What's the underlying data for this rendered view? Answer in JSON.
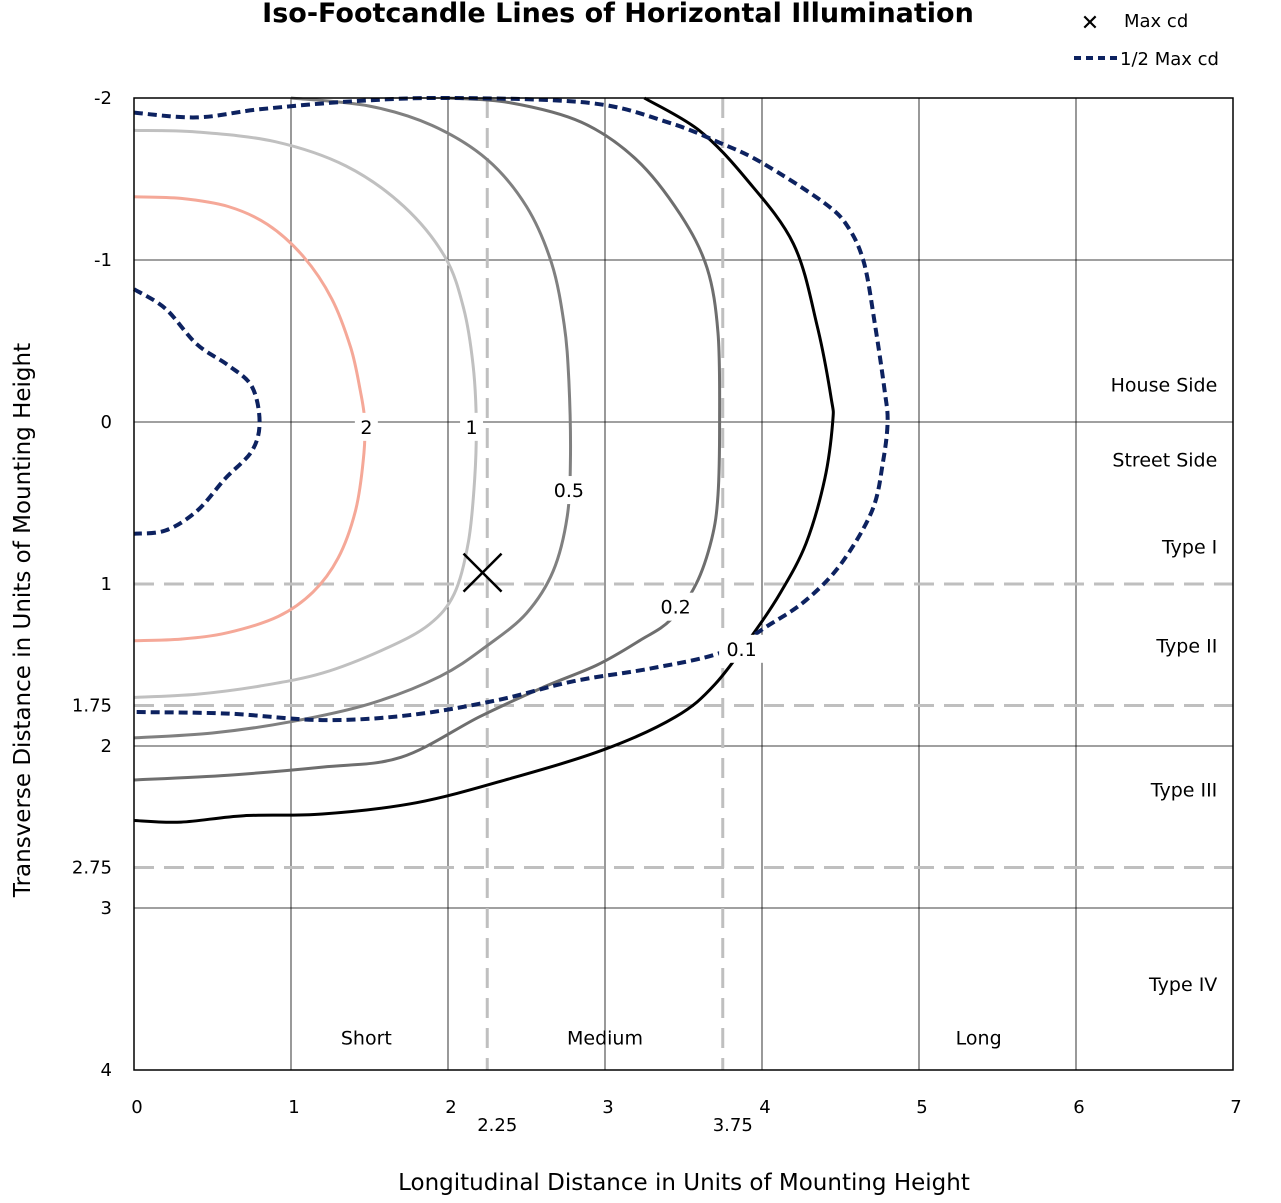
{
  "chart_data": {
    "type": "line",
    "title": "Iso-Footcandle Lines of Horizontal Illumination",
    "xlabel": "Longitudinal Distance in Units of Mounting Height",
    "ylabel": "Transverse Distance in Units of Mounting Height",
    "xlim": [
      0,
      7
    ],
    "ylim": [
      -2,
      4
    ],
    "y_inverted": true,
    "grid": true,
    "x_ticks": [
      "0",
      "1",
      "2",
      "3",
      "4",
      "5",
      "6",
      "7"
    ],
    "x_tick_values": [
      0,
      1,
      2,
      3,
      4,
      5,
      6,
      7
    ],
    "x_extra_ticks": [
      {
        "value": 2.25,
        "label": "2.25"
      },
      {
        "value": 3.75,
        "label": "3.75"
      }
    ],
    "y_ticks": [
      "-2",
      "-1",
      "0",
      "1",
      "1.75",
      "2",
      "2.75",
      "3",
      "4"
    ],
    "y_tick_values": [
      -2,
      -1,
      0,
      1,
      1.75,
      2,
      2.75,
      3,
      4
    ],
    "ref_lines": {
      "vertical": [
        2.25,
        3.75
      ],
      "horizontal": [
        1,
        1.75,
        2.75
      ]
    },
    "regions": [
      {
        "label": "House Side",
        "x": 6.9,
        "y": -0.23,
        "anchor": "end"
      },
      {
        "label": "Street Side",
        "x": 6.9,
        "y": 0.23,
        "anchor": "end"
      },
      {
        "label": "Type I",
        "x": 6.9,
        "y": 0.77,
        "anchor": "end"
      },
      {
        "label": "Type II",
        "x": 6.9,
        "y": 1.38,
        "anchor": "end"
      },
      {
        "label": "Type III",
        "x": 6.9,
        "y": 2.27,
        "anchor": "end"
      },
      {
        "label": "Type IV",
        "x": 6.9,
        "y": 3.47,
        "anchor": "end"
      },
      {
        "label": "Short",
        "x": 1.48,
        "y": 3.8,
        "anchor": "middle"
      },
      {
        "label": "Medium",
        "x": 3.0,
        "y": 3.8,
        "anchor": "middle"
      },
      {
        "label": "Long",
        "x": 5.38,
        "y": 3.8,
        "anchor": "middle"
      }
    ],
    "max_cd": {
      "x": 2.22,
      "y": 0.93
    },
    "legend": {
      "position": "top-right",
      "entries": [
        "Max cd",
        "1/2 Max cd"
      ]
    },
    "series": [
      {
        "name": "2",
        "color": "#f5a898",
        "width": 3,
        "dash": false,
        "label": {
          "text": "2",
          "x": 1.48,
          "y": 0.03
        },
        "points": [
          [
            0,
            -1.39
          ],
          [
            0.3,
            -1.38
          ],
          [
            0.6,
            -1.33
          ],
          [
            0.85,
            -1.22
          ],
          [
            1.08,
            -1.02
          ],
          [
            1.26,
            -0.76
          ],
          [
            1.38,
            -0.46
          ],
          [
            1.44,
            -0.2
          ],
          [
            1.47,
            0
          ],
          [
            1.46,
            0.24
          ],
          [
            1.41,
            0.55
          ],
          [
            1.3,
            0.84
          ],
          [
            1.14,
            1.05
          ],
          [
            0.92,
            1.2
          ],
          [
            0.6,
            1.3
          ],
          [
            0.3,
            1.34
          ],
          [
            0,
            1.35
          ]
        ]
      },
      {
        "name": "1",
        "color": "#c0c0c0",
        "width": 3,
        "dash": false,
        "label": {
          "text": "1",
          "x": 2.15,
          "y": 0.03
        },
        "points": [
          [
            0,
            -1.8
          ],
          [
            0.4,
            -1.79
          ],
          [
            0.9,
            -1.73
          ],
          [
            1.35,
            -1.58
          ],
          [
            1.72,
            -1.33
          ],
          [
            1.98,
            -1.02
          ],
          [
            2.1,
            -0.7
          ],
          [
            2.16,
            -0.35
          ],
          [
            2.18,
            0
          ],
          [
            2.17,
            0.35
          ],
          [
            2.13,
            0.74
          ],
          [
            2.04,
            1.06
          ],
          [
            1.88,
            1.25
          ],
          [
            1.6,
            1.4
          ],
          [
            1.2,
            1.55
          ],
          [
            0.8,
            1.63
          ],
          [
            0.4,
            1.68
          ],
          [
            0,
            1.7
          ]
        ]
      },
      {
        "name": "0.5",
        "color": "#808080",
        "width": 3,
        "dash": false,
        "label": {
          "text": "0.5",
          "x": 2.77,
          "y": 0.42
        },
        "points": [
          [
            1,
            -2.0
          ],
          [
            1.5,
            -1.95
          ],
          [
            1.9,
            -1.83
          ],
          [
            2.25,
            -1.62
          ],
          [
            2.5,
            -1.33
          ],
          [
            2.66,
            -0.98
          ],
          [
            2.74,
            -0.6
          ],
          [
            2.77,
            -0.25
          ],
          [
            2.78,
            0.2
          ],
          [
            2.76,
            0.58
          ],
          [
            2.67,
            0.92
          ],
          [
            2.5,
            1.18
          ],
          [
            2.25,
            1.38
          ],
          [
            1.95,
            1.57
          ],
          [
            1.5,
            1.74
          ],
          [
            1.0,
            1.85
          ],
          [
            0.5,
            1.92
          ],
          [
            0,
            1.95
          ]
        ]
      },
      {
        "name": "0.2",
        "color": "#6e6e6e",
        "width": 3,
        "dash": false,
        "label": {
          "text": "0.2",
          "x": 3.45,
          "y": 1.14
        },
        "points": [
          [
            2.0,
            -2.0
          ],
          [
            2.4,
            -1.97
          ],
          [
            2.85,
            -1.85
          ],
          [
            3.2,
            -1.62
          ],
          [
            3.48,
            -1.28
          ],
          [
            3.65,
            -0.95
          ],
          [
            3.72,
            -0.55
          ],
          [
            3.73,
            0
          ],
          [
            3.72,
            0.45
          ],
          [
            3.68,
            0.72
          ],
          [
            3.58,
            1.0
          ],
          [
            3.42,
            1.22
          ],
          [
            3.22,
            1.35
          ],
          [
            2.95,
            1.5
          ],
          [
            2.6,
            1.64
          ],
          [
            2.2,
            1.82
          ],
          [
            1.7,
            2.07
          ],
          [
            1.2,
            2.13
          ],
          [
            0.6,
            2.18
          ],
          [
            0,
            2.21
          ]
        ]
      },
      {
        "name": "0.1",
        "color": "#000000",
        "width": 3,
        "dash": false,
        "label": {
          "text": "0.1",
          "x": 3.87,
          "y": 1.4
        },
        "points": [
          [
            3.25,
            -2.0
          ],
          [
            3.6,
            -1.8
          ],
          [
            3.9,
            -1.5
          ],
          [
            4.2,
            -1.1
          ],
          [
            4.35,
            -0.6
          ],
          [
            4.44,
            -0.15
          ],
          [
            4.45,
            0
          ],
          [
            4.4,
            0.35
          ],
          [
            4.28,
            0.75
          ],
          [
            4.12,
            1.05
          ],
          [
            3.95,
            1.3
          ],
          [
            3.7,
            1.62
          ],
          [
            3.45,
            1.82
          ],
          [
            3.0,
            2.02
          ],
          [
            2.4,
            2.2
          ],
          [
            1.8,
            2.35
          ],
          [
            1.2,
            2.42
          ],
          [
            0.7,
            2.43
          ],
          [
            0.3,
            2.47
          ],
          [
            0,
            2.46
          ]
        ]
      },
      {
        "name": "1/2 Max cd",
        "color": "#0d2260",
        "width": 4,
        "dash": true,
        "points": [
          [
            0,
            -1.91
          ],
          [
            0.4,
            -1.88
          ],
          [
            0.8,
            -1.93
          ],
          [
            1.4,
            -1.98
          ],
          [
            2.0,
            -2.0
          ],
          [
            2.9,
            -1.97
          ],
          [
            3.4,
            -1.85
          ],
          [
            3.74,
            -1.72
          ],
          [
            4.0,
            -1.6
          ],
          [
            4.4,
            -1.35
          ],
          [
            4.55,
            -1.2
          ],
          [
            4.65,
            -0.98
          ],
          [
            4.72,
            -0.6
          ],
          [
            4.78,
            -0.2
          ],
          [
            4.8,
            0
          ],
          [
            4.77,
            0.25
          ],
          [
            4.7,
            0.55
          ],
          [
            4.5,
            0.88
          ],
          [
            4.28,
            1.1
          ],
          [
            4.05,
            1.25
          ],
          [
            3.75,
            1.42
          ],
          [
            3.3,
            1.52
          ],
          [
            2.8,
            1.6
          ],
          [
            2.3,
            1.72
          ],
          [
            1.75,
            1.81
          ],
          [
            1.2,
            1.84
          ],
          [
            0.6,
            1.8
          ],
          [
            0,
            1.79
          ]
        ]
      },
      {
        "name": "1/2 Max cd inner",
        "color": "#0d2260",
        "width": 4,
        "dash": true,
        "points": [
          [
            0,
            -0.82
          ],
          [
            0.2,
            -0.7
          ],
          [
            0.4,
            -0.48
          ],
          [
            0.6,
            -0.35
          ],
          [
            0.75,
            -0.22
          ],
          [
            0.8,
            0
          ],
          [
            0.75,
            0.18
          ],
          [
            0.58,
            0.35
          ],
          [
            0.4,
            0.55
          ],
          [
            0.2,
            0.67
          ],
          [
            0,
            0.69
          ]
        ]
      }
    ]
  }
}
